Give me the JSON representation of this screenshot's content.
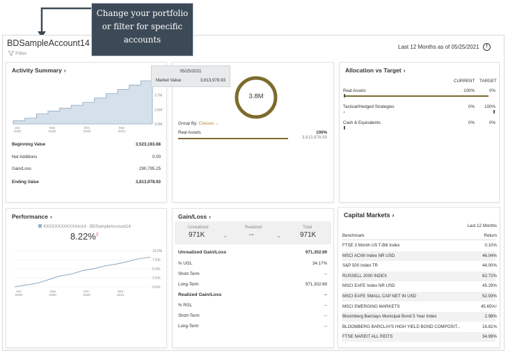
{
  "callout": {
    "line1": "Change your portfolio",
    "line2": "or filter for specific",
    "line3": "accounts"
  },
  "header": {
    "account_title": "BDSampleAccount14 -",
    "filter_label": "Filter",
    "period": "Last 12 Months as of 05/25/2021",
    "info_icon": "!"
  },
  "activity": {
    "title": "Activity Summary",
    "chart_data": {
      "type": "area",
      "x_labels": [
        "Jun\n2020",
        "Sep\n2020",
        "Dec\n2020",
        "Mar\n2021"
      ],
      "y_ticks": [
        "3.8M",
        "3.7M",
        "3.6M",
        "3.5M"
      ],
      "values": [
        3.523,
        3.54,
        3.57,
        3.59,
        3.61,
        3.63,
        3.65,
        3.68,
        3.71,
        3.74,
        3.77,
        3.8,
        3.81
      ],
      "ylim": [
        3.5,
        3.8
      ]
    },
    "rows": [
      {
        "label": "Beginning Value",
        "value": "3,523,183.68",
        "bold": true
      },
      {
        "label": "Net Additions",
        "value": "0.00",
        "bold": false
      },
      {
        "label": "Gain/Loss",
        "value": "290,795.25",
        "bold": false
      },
      {
        "label": "Ending Value",
        "value": "3,813,978.93",
        "bold": true
      }
    ]
  },
  "tooltip": {
    "date": "05/25/2021",
    "label": "Market Value:",
    "value": "3,813,978.93"
  },
  "allocation_donut": {
    "center": "3.8M",
    "group_by_label": "Group By:",
    "group_by_value": "Classes",
    "row_label": "Real Assets",
    "row_pct": "100%",
    "row_value": "3,813,978.93",
    "color": "#7d6b2e"
  },
  "alloc_target": {
    "title": "Allocation vs Target",
    "col_current": "CURRENT",
    "col_target": "TARGET",
    "rows": [
      {
        "label": "Real Assets",
        "current": "100%",
        "target": "0%",
        "fill": 1.0
      },
      {
        "label": "Tactical/Hedged Strategies",
        "current": "0%",
        "target": "100%",
        "fill": 0.0
      },
      {
        "label": "Cash & Equivalents",
        "current": "0%",
        "target": "0%",
        "fill": 0.0
      }
    ]
  },
  "performance": {
    "title": "Performance",
    "legend": "XXXXXXXXXXXXm14 - BDSampleAccount14",
    "value": "8.22%",
    "superscript": "2",
    "chart_data": {
      "type": "line",
      "x_labels": [
        "Jun\n2020",
        "Sep\n2020",
        "Dec\n2020",
        "Mar\n2021"
      ],
      "y_ticks": [
        "10.0%",
        "7.5%",
        "5.0%",
        "2.5%",
        "0.0%"
      ],
      "values": [
        0.0,
        0.5,
        1.0,
        2.0,
        3.0,
        3.5,
        4.5,
        5.0,
        5.8,
        6.3,
        7.0,
        7.8,
        8.2
      ],
      "ylim": [
        0,
        10
      ]
    }
  },
  "gainloss": {
    "title": "Gain/Loss",
    "unrealized_label": "Unrealized",
    "realized_label": "Realized",
    "total_label": "Total",
    "unrealized_value": "971K",
    "realized_value": "--",
    "total_value": "971K",
    "plus": "+",
    "equals": "=",
    "rows": [
      {
        "label": "Unrealized Gain/Loss",
        "value": "971,302.69",
        "bold": true
      },
      {
        "label": "% UGL",
        "value": "34.17%",
        "bold": false
      },
      {
        "label": "Short-Term",
        "value": "--",
        "bold": false
      },
      {
        "label": "Long-Term",
        "value": "971,302.69",
        "bold": false
      },
      {
        "label": "Realized Gain/Loss",
        "value": "--",
        "bold": true
      },
      {
        "label": "% RGL",
        "value": "--",
        "bold": false
      },
      {
        "label": "Short-Term",
        "value": "--",
        "bold": false
      },
      {
        "label": "Long-Term",
        "value": "--",
        "bold": false
      }
    ]
  },
  "capital": {
    "title": "Capital Markets",
    "period": "Last 12 Months",
    "col_benchmark": "Benchmark",
    "col_return": "Return",
    "rows": [
      {
        "name": "FTSE 3 Month US T-Bill Index",
        "ret": "0.10%"
      },
      {
        "name": "MSCI ACWI Index NR USD",
        "ret": "46.04%"
      },
      {
        "name": "S&P 500 Index TR",
        "ret": "44.00%"
      },
      {
        "name": "RUSSELL 2000 INDEX",
        "ret": "62.72%"
      },
      {
        "name": "MSCI EAFE Index NR USD",
        "ret": "45.29%"
      },
      {
        "name": "MSCI EAFE SMALL CAP NET IN USD",
        "ret": "52.93%"
      },
      {
        "name": "MSCI EMERGING MARKETS",
        "ret": "45.65%¹"
      },
      {
        "name": "Bloomberg Barclays Municipal Bond 5 Year Index",
        "ret": "2.98%"
      },
      {
        "name": "BLOOMBERG BARCLAYS HIGH YIELD BOND COMPOSIT...",
        "ret": "16.81%"
      },
      {
        "name": "FTSE NAREIT ALL REITS",
        "ret": "34.99%"
      }
    ]
  }
}
